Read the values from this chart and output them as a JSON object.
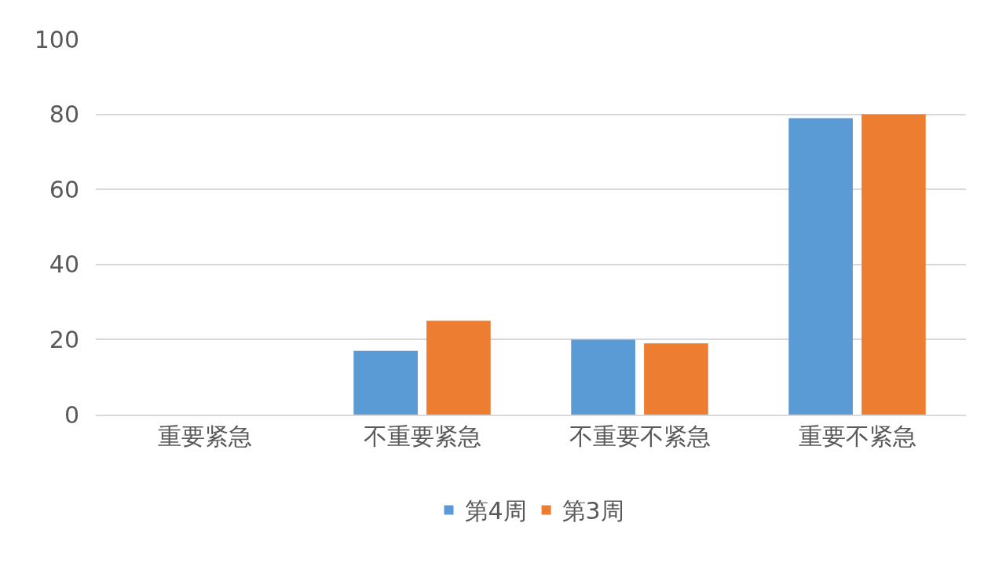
{
  "chart_data": {
    "type": "bar",
    "categories": [
      "重要紧急",
      "不重要紧急",
      "不重要不紧急",
      "重要不紧急"
    ],
    "series": [
      {
        "name": "第4周",
        "color": "#5b9bd5",
        "values": [
          0,
          17,
          20,
          79
        ]
      },
      {
        "name": "第3周",
        "color": "#ed7d31",
        "values": [
          0,
          25,
          19,
          80
        ]
      }
    ],
    "ylim": [
      0,
      100
    ],
    "yticks": [
      0,
      20,
      40,
      60,
      80,
      100
    ],
    "grid": "y",
    "legend": "bottom"
  }
}
